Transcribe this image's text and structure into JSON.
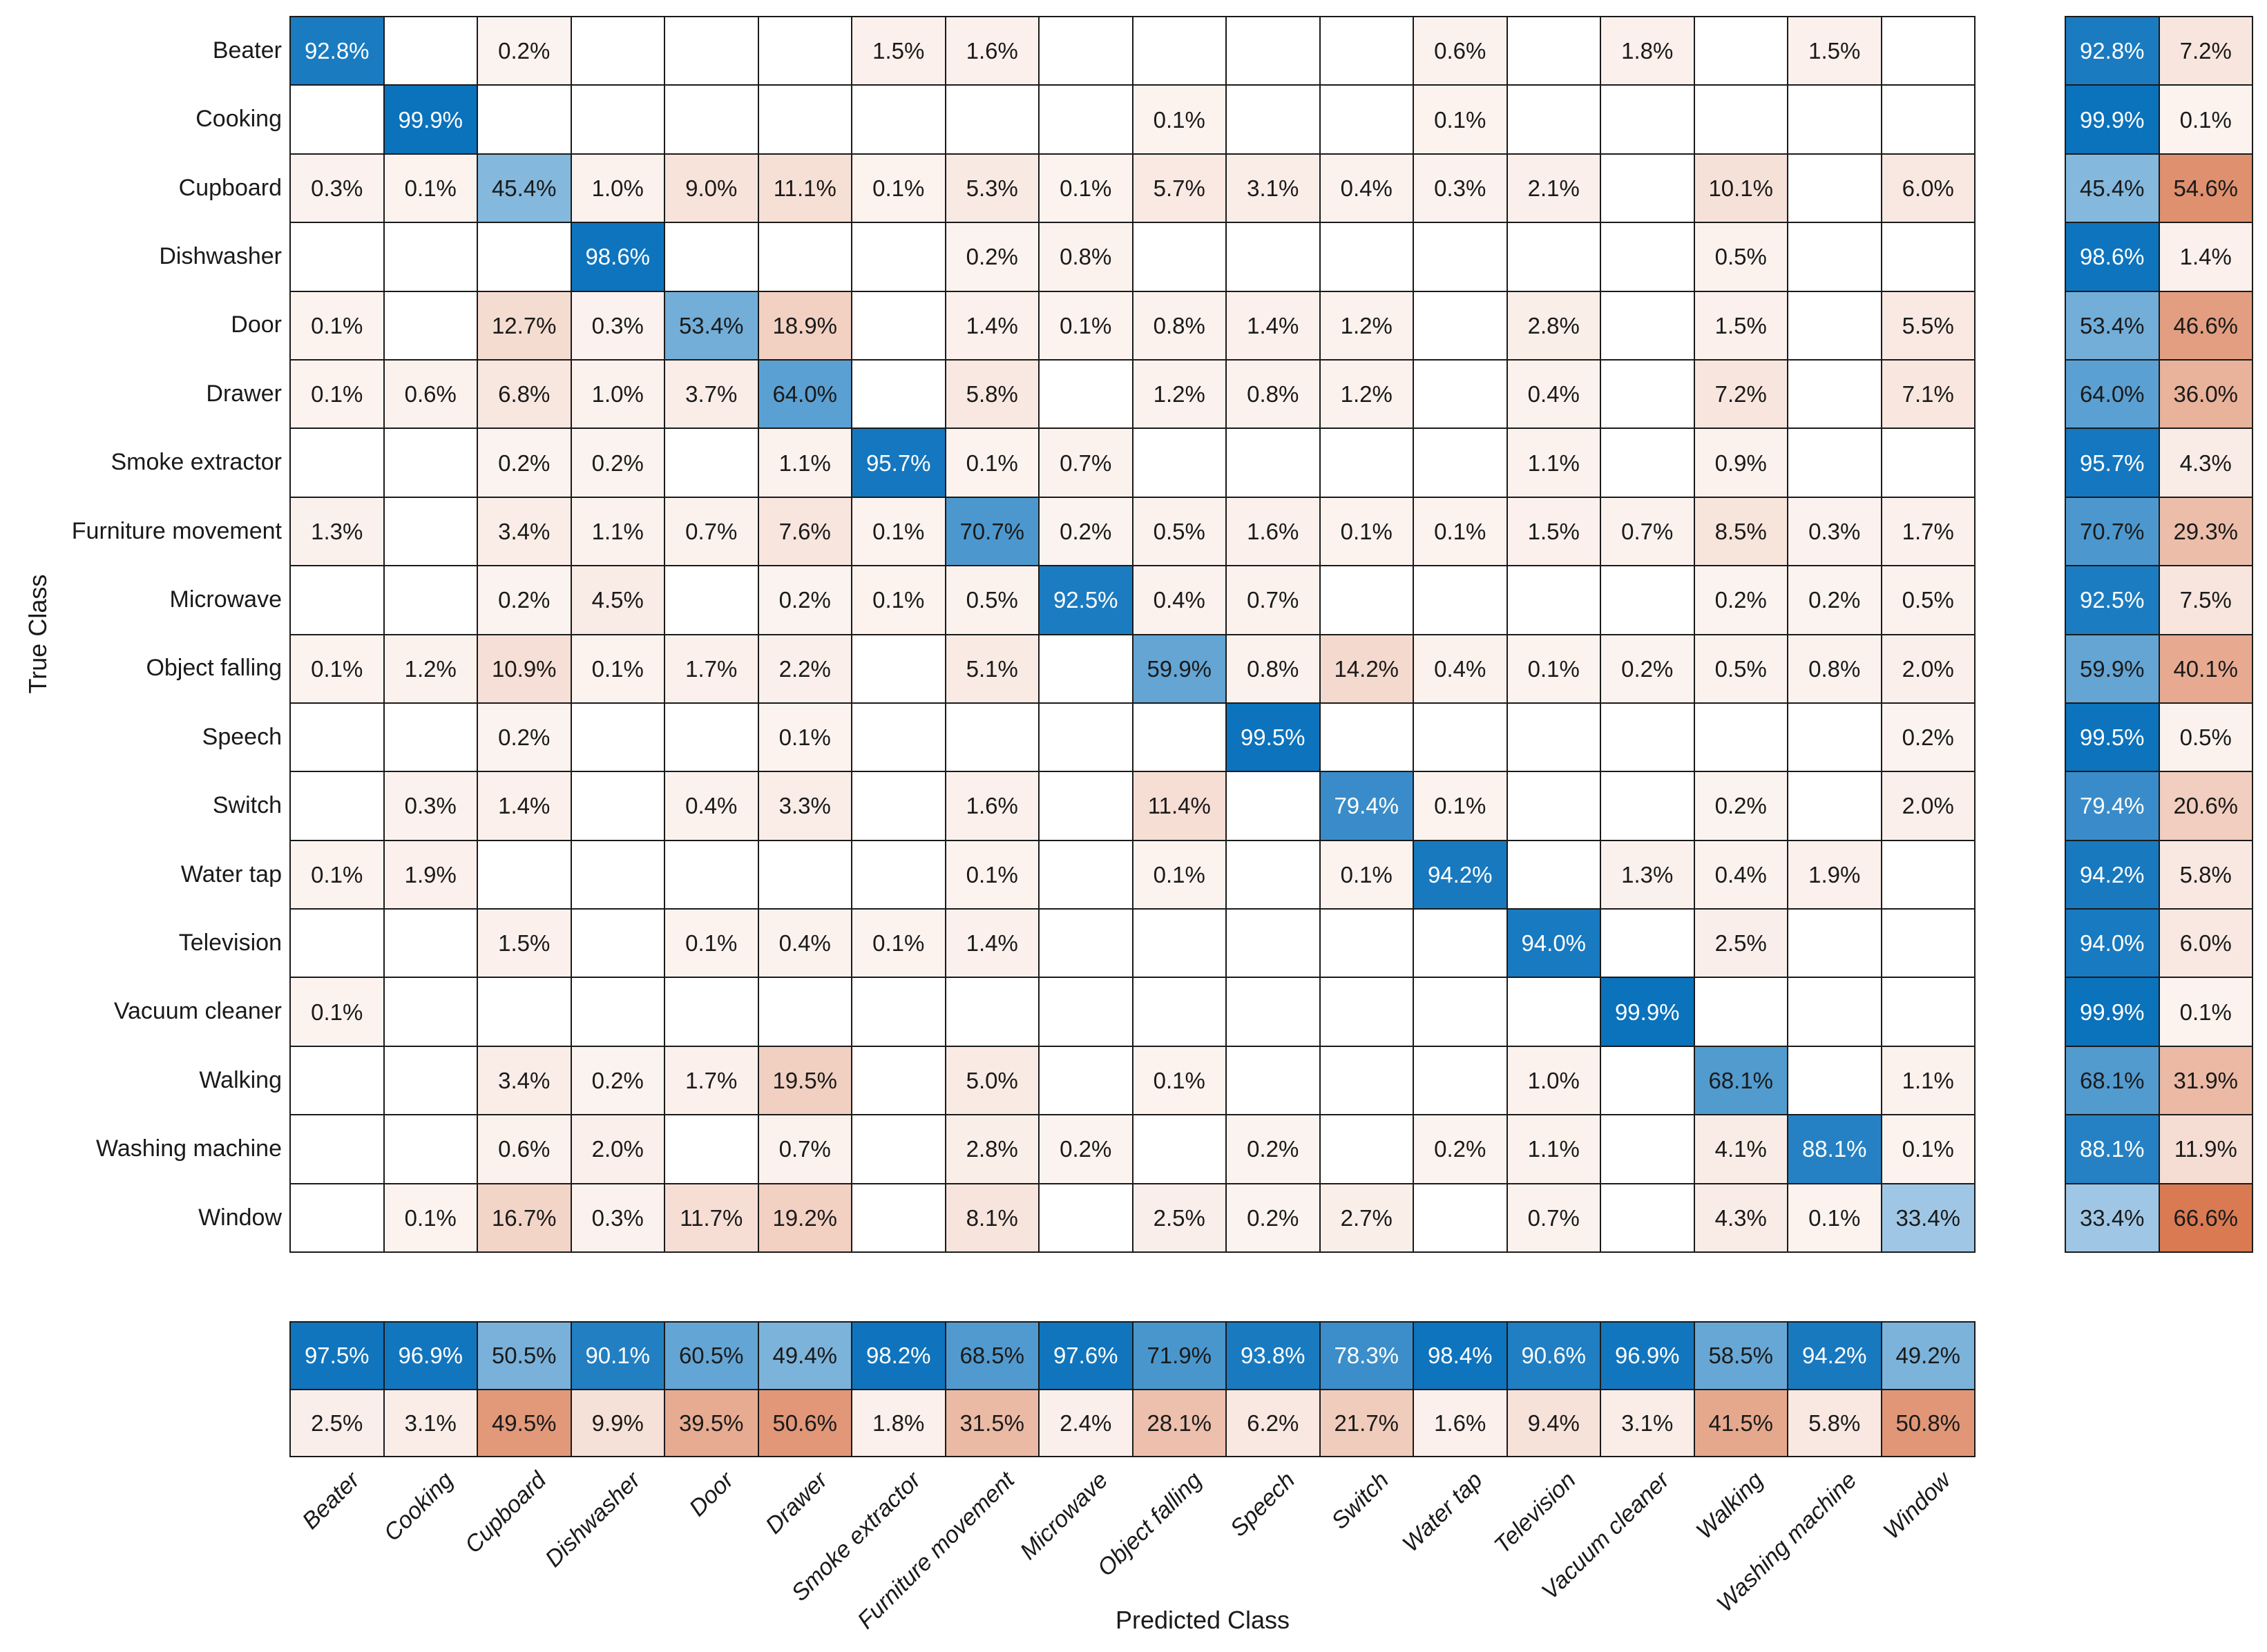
{
  "chart_data": {
    "type": "heatmap",
    "subtype": "confusion-matrix",
    "title": "",
    "xlabel": "Predicted Class",
    "ylabel": "True Class",
    "value_suffix": "%",
    "grid": true,
    "legend_position": "none",
    "classes": [
      "Beater",
      "Cooking",
      "Cupboard",
      "Dishwasher",
      "Door",
      "Drawer",
      "Smoke extractor",
      "Furniture movement",
      "Microwave",
      "Object falling",
      "Speech",
      "Switch",
      "Water tap",
      "Television",
      "Vacuum cleaner",
      "Walking",
      "Washing machine",
      "Window"
    ],
    "matrix_percent": [
      [
        92.8,
        null,
        0.2,
        null,
        null,
        null,
        1.5,
        1.6,
        null,
        null,
        null,
        null,
        0.6,
        null,
        1.8,
        null,
        1.5,
        null
      ],
      [
        null,
        99.9,
        null,
        null,
        null,
        null,
        null,
        null,
        null,
        0.1,
        null,
        null,
        0.1,
        null,
        null,
        null,
        null,
        null
      ],
      [
        0.3,
        0.1,
        45.4,
        1.0,
        9.0,
        11.1,
        0.1,
        5.3,
        0.1,
        5.7,
        3.1,
        0.4,
        0.3,
        2.1,
        null,
        10.1,
        null,
        6.0
      ],
      [
        null,
        null,
        null,
        98.6,
        null,
        null,
        null,
        0.2,
        0.8,
        null,
        null,
        null,
        null,
        null,
        null,
        0.5,
        null,
        null
      ],
      [
        0.1,
        null,
        12.7,
        0.3,
        53.4,
        18.9,
        null,
        1.4,
        0.1,
        0.8,
        1.4,
        1.2,
        null,
        2.8,
        null,
        1.5,
        null,
        5.5
      ],
      [
        0.1,
        0.6,
        6.8,
        1.0,
        3.7,
        64.0,
        null,
        5.8,
        null,
        1.2,
        0.8,
        1.2,
        null,
        0.4,
        null,
        7.2,
        null,
        7.1
      ],
      [
        null,
        null,
        0.2,
        0.2,
        null,
        1.1,
        95.7,
        0.1,
        0.7,
        null,
        null,
        null,
        null,
        1.1,
        null,
        0.9,
        null,
        null
      ],
      [
        1.3,
        null,
        3.4,
        1.1,
        0.7,
        7.6,
        0.1,
        70.7,
        0.2,
        0.5,
        1.6,
        0.1,
        0.1,
        1.5,
        0.7,
        8.5,
        0.3,
        1.7
      ],
      [
        null,
        null,
        0.2,
        4.5,
        null,
        0.2,
        0.1,
        0.5,
        92.5,
        0.4,
        0.7,
        null,
        null,
        null,
        null,
        0.2,
        0.2,
        0.5
      ],
      [
        0.1,
        1.2,
        10.9,
        0.1,
        1.7,
        2.2,
        null,
        5.1,
        null,
        59.9,
        0.8,
        14.2,
        0.4,
        0.1,
        0.2,
        0.5,
        0.8,
        2.0
      ],
      [
        null,
        null,
        0.2,
        null,
        null,
        0.1,
        null,
        null,
        null,
        null,
        99.5,
        null,
        null,
        null,
        null,
        null,
        null,
        0.2
      ],
      [
        null,
        0.3,
        1.4,
        null,
        0.4,
        3.3,
        null,
        1.6,
        null,
        11.4,
        null,
        79.4,
        0.1,
        null,
        null,
        0.2,
        null,
        2.0
      ],
      [
        0.1,
        1.9,
        null,
        null,
        null,
        null,
        null,
        0.1,
        null,
        0.1,
        null,
        0.1,
        94.2,
        null,
        1.3,
        0.4,
        1.9,
        null
      ],
      [
        null,
        null,
        1.5,
        null,
        0.1,
        0.4,
        0.1,
        1.4,
        null,
        null,
        null,
        null,
        null,
        94.0,
        null,
        2.5,
        null,
        null
      ],
      [
        0.1,
        null,
        null,
        null,
        null,
        null,
        null,
        null,
        null,
        null,
        null,
        null,
        null,
        null,
        99.9,
        null,
        null,
        null
      ],
      [
        null,
        null,
        3.4,
        0.2,
        1.7,
        19.5,
        null,
        5.0,
        null,
        0.1,
        null,
        null,
        null,
        1.0,
        null,
        68.1,
        null,
        1.1
      ],
      [
        null,
        null,
        0.6,
        2.0,
        null,
        0.7,
        null,
        2.8,
        0.2,
        null,
        0.2,
        null,
        0.2,
        1.1,
        null,
        4.1,
        88.1,
        0.1
      ],
      [
        null,
        0.1,
        16.7,
        0.3,
        11.7,
        19.2,
        null,
        8.1,
        null,
        2.5,
        0.2,
        2.7,
        null,
        0.7,
        null,
        4.3,
        0.1,
        33.4
      ]
    ],
    "row_summary_percent": {
      "description": "per true-class: [recall, miss rate]",
      "values": [
        [
          92.8,
          7.2
        ],
        [
          99.9,
          0.1
        ],
        [
          45.4,
          54.6
        ],
        [
          98.6,
          1.4
        ],
        [
          53.4,
          46.6
        ],
        [
          64.0,
          36.0
        ],
        [
          95.7,
          4.3
        ],
        [
          70.7,
          29.3
        ],
        [
          92.5,
          7.5
        ],
        [
          59.9,
          40.1
        ],
        [
          99.5,
          0.5
        ],
        [
          79.4,
          20.6
        ],
        [
          94.2,
          5.8
        ],
        [
          94.0,
          6.0
        ],
        [
          99.9,
          0.1
        ],
        [
          68.1,
          31.9
        ],
        [
          88.1,
          11.9
        ],
        [
          33.4,
          66.6
        ]
      ]
    },
    "column_summary_percent": {
      "description": "per predicted-class: top row = precision, bottom row = false discovery rate",
      "top": [
        97.5,
        96.9,
        50.5,
        90.1,
        60.5,
        49.4,
        98.2,
        68.5,
        97.6,
        71.9,
        93.8,
        78.3,
        98.4,
        90.6,
        96.9,
        58.5,
        94.2,
        49.2
      ],
      "bottom": [
        2.5,
        3.1,
        49.5,
        9.9,
        39.5,
        50.6,
        1.8,
        31.5,
        2.4,
        28.1,
        6.2,
        21.7,
        1.6,
        9.4,
        3.1,
        41.5,
        5.8,
        50.8
      ]
    },
    "colors": {
      "diagonal_max_blue": "#0b72bc",
      "off_diagonal_max_orange": "#d97a52",
      "grid_line": "#1a1a1a",
      "empty_cell": "#ffffff",
      "text_dark": "#1a1a1a",
      "text_light": "#ffffff"
    }
  }
}
